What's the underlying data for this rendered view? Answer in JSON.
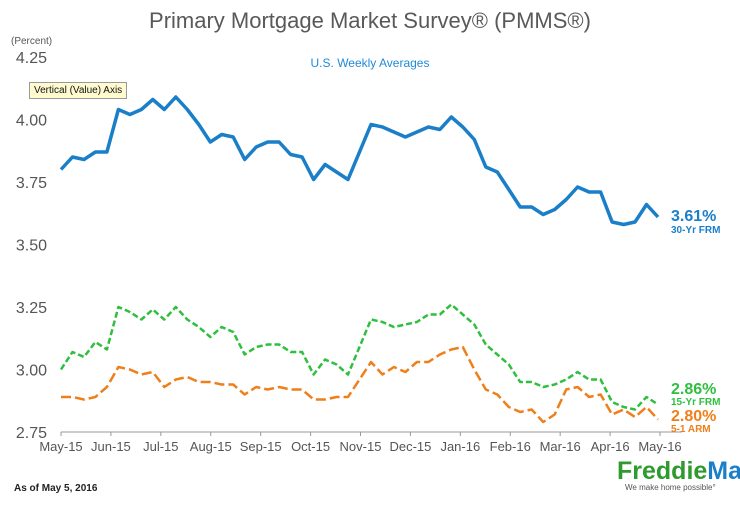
{
  "header": {
    "title": "Primary Mortgage Market Survey® (PMMS®)",
    "subtitle": "U.S. Weekly Averages",
    "unit_label": "(Percent)"
  },
  "tooltip": {
    "text": "Vertical (Value) Axis"
  },
  "footer": {
    "as_of": "As of May 5, 2016",
    "logo_part1": "Freddie",
    "logo_part2": "Mac",
    "logo_tagline": "We make home possible°"
  },
  "colors": {
    "frm30": "#1a7fc8",
    "frm15": "#2fbf3f",
    "arm51": "#ef7f1a",
    "axis": "#999999"
  },
  "chart_data": {
    "type": "line",
    "title": "Primary Mortgage Market Survey® (PMMS®)",
    "subtitle": "U.S. Weekly Averages",
    "ylabel": "(Percent)",
    "ylim": [
      2.75,
      4.25
    ],
    "yticks": [
      "2.75",
      "3.00",
      "3.25",
      "3.50",
      "3.75",
      "4.00",
      "4.25"
    ],
    "xticks": [
      "May-15",
      "Jun-15",
      "Jul-15",
      "Aug-15",
      "Sep-15",
      "Oct-15",
      "Nov-15",
      "Dec-15",
      "Jan-16",
      "Feb-16",
      "Mar-16",
      "Apr-16",
      "May-16"
    ],
    "series": [
      {
        "name": "30-Yr FRM",
        "style": "solid",
        "end_label": "3.61%",
        "values": [
          3.8,
          3.85,
          3.84,
          3.87,
          3.87,
          4.04,
          4.02,
          4.04,
          4.08,
          4.04,
          4.09,
          4.04,
          3.98,
          3.91,
          3.94,
          3.93,
          3.84,
          3.89,
          3.91,
          3.91,
          3.86,
          3.85,
          3.76,
          3.82,
          3.79,
          3.76,
          3.87,
          3.98,
          3.97,
          3.95,
          3.93,
          3.95,
          3.97,
          3.96,
          4.01,
          3.97,
          3.92,
          3.81,
          3.79,
          3.72,
          3.65,
          3.65,
          3.62,
          3.64,
          3.68,
          3.73,
          3.71,
          3.71,
          3.59,
          3.58,
          3.59,
          3.66,
          3.61
        ]
      },
      {
        "name": "15-Yr FRM",
        "style": "dashed",
        "end_label": "2.86%",
        "values": [
          3.0,
          3.07,
          3.05,
          3.11,
          3.08,
          3.25,
          3.23,
          3.2,
          3.24,
          3.2,
          3.25,
          3.2,
          3.17,
          3.13,
          3.17,
          3.15,
          3.06,
          3.09,
          3.1,
          3.1,
          3.07,
          3.07,
          2.98,
          3.04,
          3.02,
          2.98,
          3.09,
          3.2,
          3.19,
          3.17,
          3.18,
          3.19,
          3.22,
          3.22,
          3.26,
          3.22,
          3.18,
          3.1,
          3.06,
          3.02,
          2.95,
          2.95,
          2.93,
          2.94,
          2.96,
          2.99,
          2.96,
          2.96,
          2.87,
          2.85,
          2.84,
          2.89,
          2.86
        ]
      },
      {
        "name": "5-1 ARM",
        "style": "dashed",
        "end_label": "2.80%",
        "values": [
          2.89,
          2.89,
          2.88,
          2.89,
          2.93,
          3.01,
          3.0,
          2.98,
          2.99,
          2.93,
          2.96,
          2.97,
          2.95,
          2.95,
          2.94,
          2.94,
          2.9,
          2.93,
          2.92,
          2.93,
          2.92,
          2.92,
          2.88,
          2.88,
          2.89,
          2.89,
          2.96,
          3.03,
          2.98,
          3.01,
          2.99,
          3.03,
          3.03,
          3.06,
          3.08,
          3.09,
          3.0,
          2.92,
          2.9,
          2.85,
          2.83,
          2.84,
          2.79,
          2.82,
          2.92,
          2.93,
          2.89,
          2.9,
          2.82,
          2.84,
          2.81,
          2.85,
          2.8
        ]
      }
    ]
  }
}
